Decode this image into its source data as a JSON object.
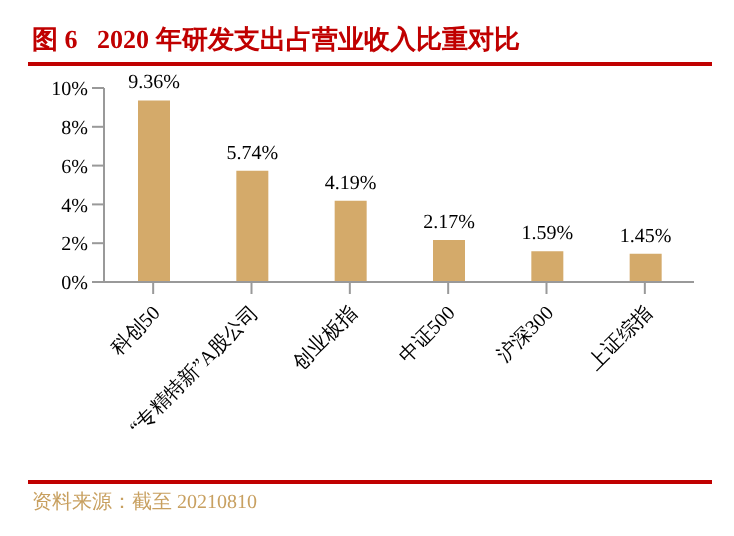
{
  "chart_data": {
    "type": "bar",
    "title": "图 6   2020 年研发支出占营业收入比重对比",
    "categories": [
      "科创50",
      "“专精特新”A股公司",
      "创业板指",
      "中证500",
      "沪深300",
      "上证综指"
    ],
    "values": [
      9.36,
      5.74,
      4.19,
      2.17,
      1.59,
      1.45
    ],
    "value_labels": [
      "9.36%",
      "5.74%",
      "4.19%",
      "2.17%",
      "1.59%",
      "1.45%"
    ],
    "color": "#d4aa6a",
    "ylim": [
      0,
      10
    ],
    "yticks": [
      {
        "value": 0,
        "label": "0%"
      },
      {
        "value": 2,
        "label": "2%"
      },
      {
        "value": 4,
        "label": "4%"
      },
      {
        "value": 6,
        "label": "6%"
      },
      {
        "value": 8,
        "label": "8%"
      },
      {
        "value": 10,
        "label": "10%"
      }
    ],
    "grid": false,
    "legend": false,
    "annotations": [
      "资料来源：截至 20210810"
    ]
  }
}
